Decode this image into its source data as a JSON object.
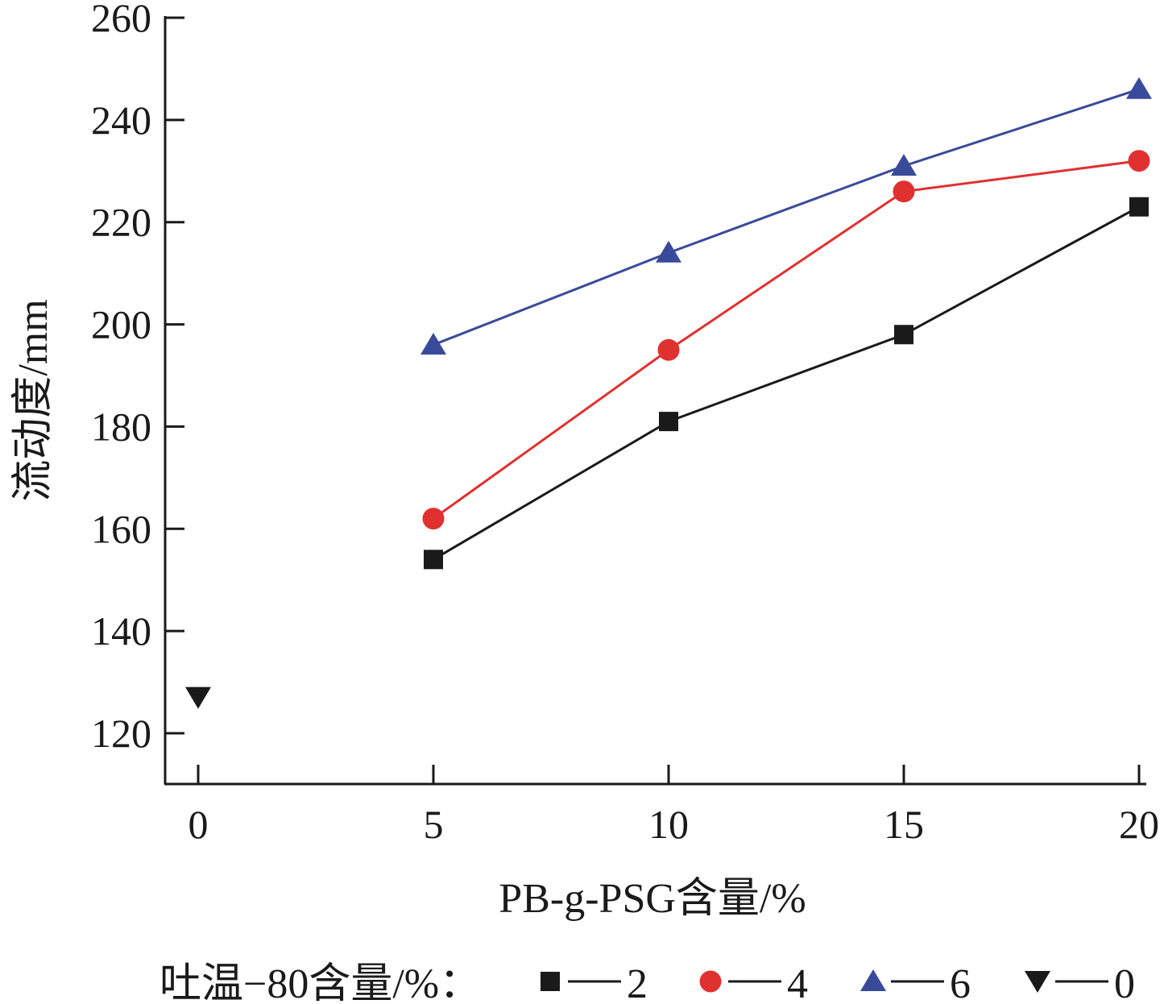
{
  "chart_data": {
    "type": "line",
    "xlabel": "PB-g-PSG含量/%",
    "ylabel": "流动度/mm",
    "xlim": [
      -0.7,
      20
    ],
    "ylim": [
      110,
      260
    ],
    "x_ticks": [
      0,
      5,
      10,
      15,
      20
    ],
    "x_tick_labels": [
      "0",
      "5",
      "10",
      "15",
      "20"
    ],
    "y_ticks": [
      120,
      140,
      160,
      180,
      200,
      220,
      240,
      260
    ],
    "y_tick_labels": [
      "120",
      "140",
      "160",
      "180",
      "200",
      "220",
      "240",
      "260"
    ],
    "grid": false,
    "legend": {
      "title": "吐温−80含量/%：",
      "placement": "bottom"
    },
    "series": [
      {
        "name": "2",
        "marker": "square",
        "color": "#1a1a1a",
        "x": [
          5,
          10,
          15,
          20
        ],
        "y": [
          154,
          181,
          198,
          223
        ]
      },
      {
        "name": "4",
        "marker": "circle",
        "color": "#e03131",
        "x": [
          5,
          10,
          15,
          20
        ],
        "y": [
          162,
          195,
          226,
          232
        ]
      },
      {
        "name": "6",
        "marker": "triangle-up",
        "color": "#3a4a9a",
        "x": [
          5,
          10,
          15,
          20
        ],
        "y": [
          196,
          214,
          231,
          246
        ]
      },
      {
        "name": "0",
        "marker": "triangle-down",
        "color": "#1a1a1a",
        "x": [
          0
        ],
        "y": [
          127
        ]
      }
    ]
  }
}
